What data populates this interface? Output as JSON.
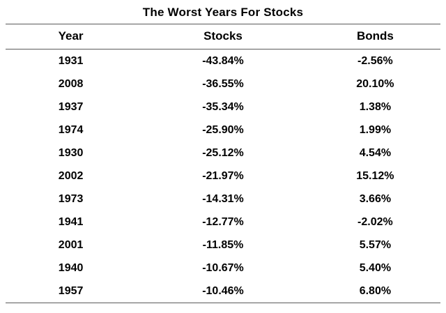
{
  "chart_data": {
    "type": "table",
    "title": "The Worst Years For Stocks",
    "columns": [
      "Year",
      "Stocks",
      "Bonds"
    ],
    "rows": [
      {
        "year": "1931",
        "stocks": "-43.84%",
        "bonds": "-2.56%"
      },
      {
        "year": "2008",
        "stocks": "-36.55%",
        "bonds": "20.10%"
      },
      {
        "year": "1937",
        "stocks": "-35.34%",
        "bonds": "1.38%"
      },
      {
        "year": "1974",
        "stocks": "-25.90%",
        "bonds": "1.99%"
      },
      {
        "year": "1930",
        "stocks": "-25.12%",
        "bonds": "4.54%"
      },
      {
        "year": "2002",
        "stocks": "-21.97%",
        "bonds": "15.12%"
      },
      {
        "year": "1973",
        "stocks": "-14.31%",
        "bonds": "3.66%"
      },
      {
        "year": "1941",
        "stocks": "-12.77%",
        "bonds": "-2.02%"
      },
      {
        "year": "2001",
        "stocks": "-11.85%",
        "bonds": "5.57%"
      },
      {
        "year": "1940",
        "stocks": "-10.67%",
        "bonds": "5.40%"
      },
      {
        "year": "1957",
        "stocks": "-10.46%",
        "bonds": "6.80%"
      }
    ],
    "layout": {
      "grid": "horizontal-rules-only",
      "text_color": "#000000",
      "rule_color": "#5a5a5a",
      "background": "#ffffff"
    }
  }
}
